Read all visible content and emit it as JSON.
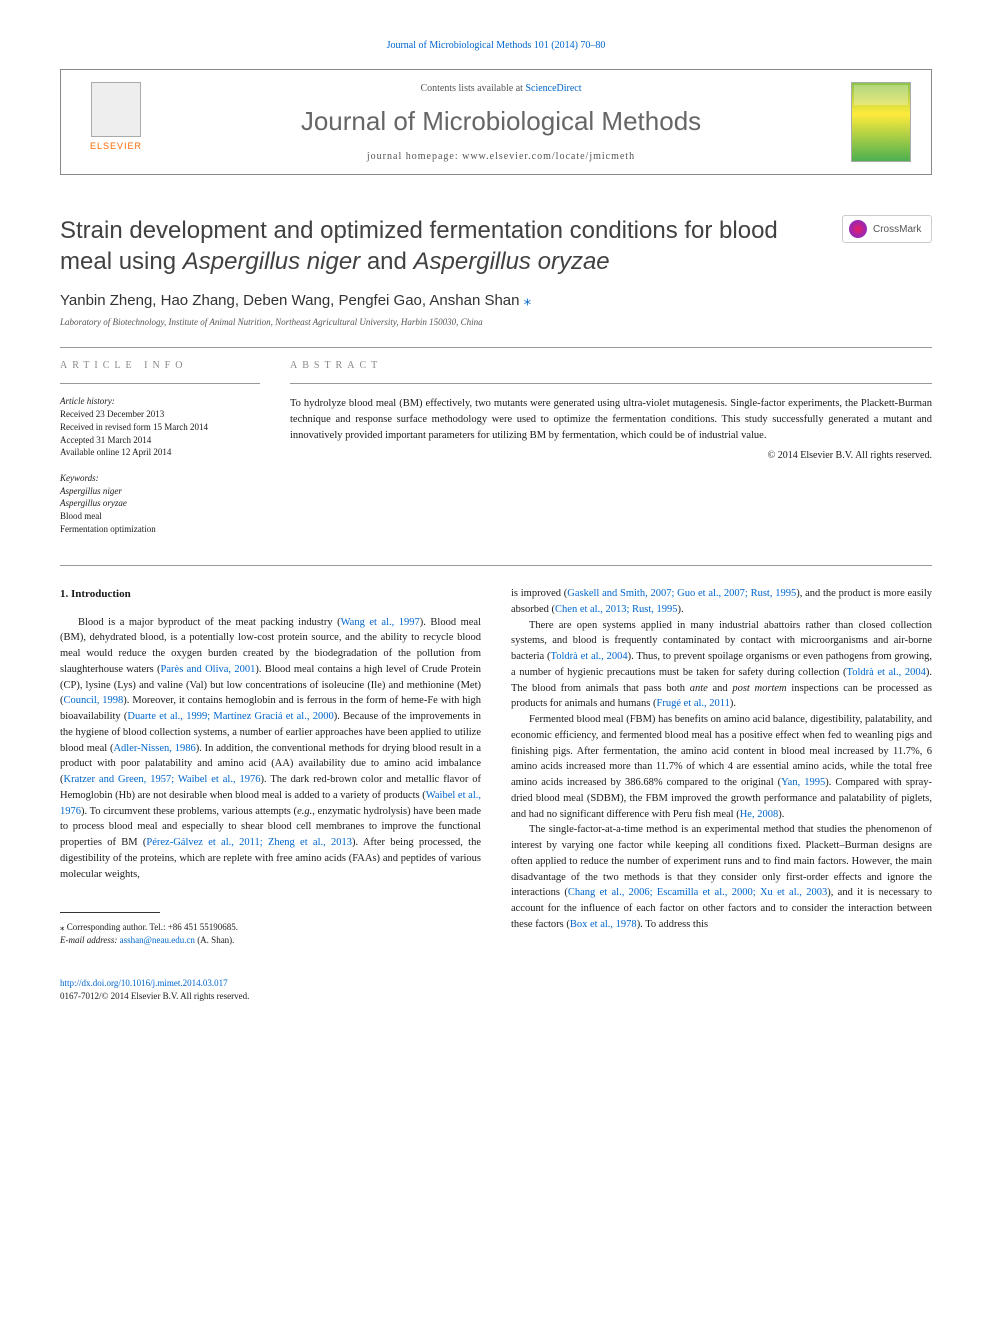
{
  "top_link": "Journal of Microbiological Methods 101 (2014) 70–80",
  "header": {
    "publisher": "ELSEVIER",
    "contents_prefix": "Contents lists available at ",
    "contents_link": "ScienceDirect",
    "journal_name": "Journal of Microbiological Methods",
    "homepage_prefix": "journal homepage: ",
    "homepage_url": "www.elsevier.com/locate/jmicmeth"
  },
  "crossmark": "CrossMark",
  "title_html": "Strain development and optimized fermentation conditions for blood meal using <em>Aspergillus niger</em> and <em>Aspergillus oryzae</em>",
  "authors": "Yanbin Zheng, Hao Zhang, Deben Wang, Pengfei Gao, Anshan Shan",
  "affiliation": "Laboratory of Biotechnology, Institute of Animal Nutrition, Northeast Agricultural University, Harbin 150030, China",
  "article_info_label": "article info",
  "abstract_label": "abstract",
  "history": {
    "label": "Article history:",
    "items": [
      "Received 23 December 2013",
      "Received in revised form 15 March 2014",
      "Accepted 31 March 2014",
      "Available online 12 April 2014"
    ]
  },
  "keywords": {
    "label": "Keywords:",
    "items": [
      "Aspergillus niger",
      "Aspergillus oryzae",
      "Blood meal",
      "Fermentation optimization"
    ]
  },
  "abstract": "To hydrolyze blood meal (BM) effectively, two mutants were generated using ultra-violet mutagenesis. Single-factor experiments, the Plackett-Burman technique and response surface methodology were used to optimize the fermentation conditions. This study successfully generated a mutant and innovatively provided important parameters for utilizing BM by fermentation, which could be of industrial value.",
  "copyright": "© 2014 Elsevier B.V. All rights reserved.",
  "intro_heading": "1. Introduction",
  "col_left_html": "Blood is a major byproduct of the meat packing industry (<span class=\"ref-link\">Wang et al., 1997</span>). Blood meal (BM), dehydrated blood, is a potentially low-cost protein source, and the ability to recycle blood meal would reduce the oxygen burden created by the biodegradation of the pollution from slaughterhouse waters (<span class=\"ref-link\">Parès and Oliva, 2001</span>). Blood meal contains a high level of Crude Protein (CP), lysine (Lys) and valine (Val) but low concentrations of isoleucine (Ile) and methionine (Met) (<span class=\"ref-link\">Council, 1998</span>). Moreover, it contains hemoglobin and is ferrous in the form of heme-Fe with high bioavailability (<span class=\"ref-link\">Duarte et al., 1999; Martínez Graciá et al., 2000</span>). Because of the improvements in the hygiene of blood collection systems, a number of earlier approaches have been applied to utilize blood meal (<span class=\"ref-link\">Adler-Nissen, 1986</span>). In addition, the conventional methods for drying blood result in a product with poor palatability and amino acid (AA) availability due to amino acid imbalance (<span class=\"ref-link\">Kratzer and Green, 1957; Waibel et al., 1976</span>). The dark red-brown color and metallic flavor of Hemoglobin (Hb) are not desirable when blood meal is added to a variety of products (<span class=\"ref-link\">Waibel et al., 1976</span>). To circumvent these problems, various attempts (<em>e.g.</em>, enzymatic hydrolysis) have been made to process blood meal and especially to shear blood cell membranes to improve the functional properties of BM (<span class=\"ref-link\">Pérez-Gálvez et al., 2011; Zheng et al., 2013</span>). After being processed, the digestibility of the proteins, which are replete with free amino acids (FAAs) and peptides of various molecular weights,",
  "col_right_top_html": "is improved (<span class=\"ref-link\">Gaskell and Smith, 2007; Guo et al., 2007; Rust, 1995</span>), and the product is more easily absorbed (<span class=\"ref-link\">Chen et al., 2013; Rust, 1995</span>).",
  "col_right_p2_html": "There are open systems applied in many industrial abattoirs rather than closed collection systems, and blood is frequently contaminated by contact with microorganisms and air-borne bacteria (<span class=\"ref-link\">Toldrà et al., 2004</span>). Thus, to prevent spoilage organisms or even pathogens from growing, a number of hygienic precautions must be taken for safety during collection (<span class=\"ref-link\">Toldrà et al., 2004</span>). The blood from animals that pass both <em>ante</em> and <em>post mortem</em> inspections can be processed as products for animals and humans (<span class=\"ref-link\">Frugé et al., 2011</span>).",
  "col_right_p3_html": "Fermented blood meal (FBM) has benefits on amino acid balance, digestibility, palatability, and economic efficiency, and fermented blood meal has a positive effect when fed to weanling pigs and finishing pigs. After fermentation, the amino acid content in blood meal increased by 11.7%, 6 amino acids increased more than 11.7% of which 4 are essential amino acids, while the total free amino acids increased by 386.68% compared to the original (<span class=\"ref-link\">Yan, 1995</span>). Compared with spray-dried blood meal (SDBM), the FBM improved the growth performance and palatability of piglets, and had no significant difference with Peru fish meal (<span class=\"ref-link\">He, 2008</span>).",
  "col_right_p4_html": "The single-factor-at-a-time method is an experimental method that studies the phenomenon of interest by varying one factor while keeping all conditions fixed. Plackett–Burman designs are often applied to reduce the number of experiment runs and to find main factors. However, the main disadvantage of the two methods is that they consider only first-order effects and ignore the interactions (<span class=\"ref-link\">Chang et al., 2006; Escamilla et al., 2000; Xu et al., 2003</span>), and it is necessary to account for the influence of each factor on other factors and to consider the interaction between these factors (<span class=\"ref-link\">Box et al., 1978</span>). To address this",
  "footnote": {
    "corr": "⁎ Corresponding author. Tel.: +86 451 55190685.",
    "email_label": "E-mail address:",
    "email": "asshan@neau.edu.cn",
    "email_suffix": " (A. Shan)."
  },
  "bottom": {
    "doi": "http://dx.doi.org/10.1016/j.mimet.2014.03.017",
    "issn": "0167-7012/© 2014 Elsevier B.V. All rights reserved."
  },
  "colors": {
    "link": "#0066cc",
    "publisher": "#ff6600",
    "heading_gray": "#666666",
    "text": "#1a1a1a"
  }
}
